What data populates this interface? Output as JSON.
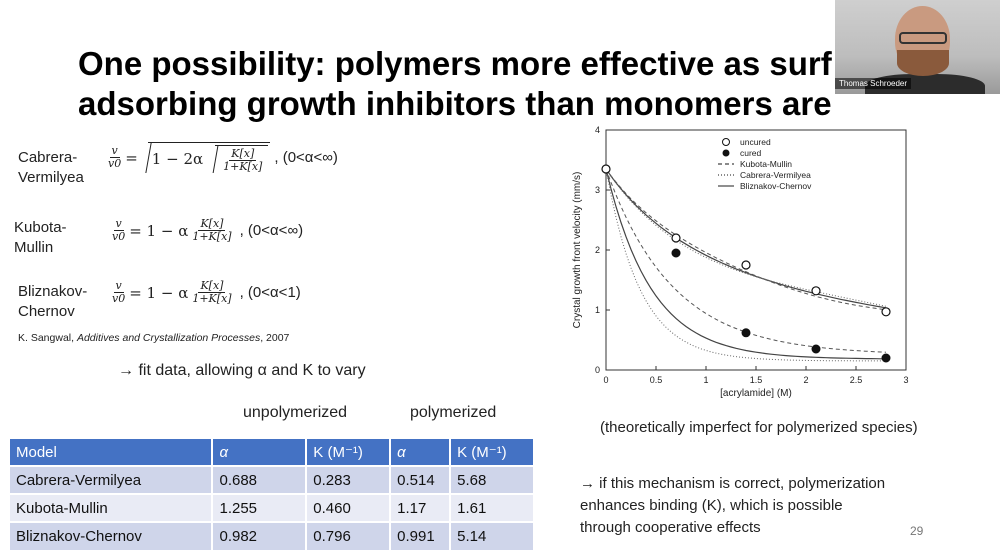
{
  "title": {
    "line1": "One possibility: polymers more effective as surf",
    "line2": "adsorbing growth inhibitors than monomers are"
  },
  "webcam": {
    "name": "Thomas Schroeder"
  },
  "equations": [
    {
      "label1": "Cabrera-",
      "label2": "Vermilyea",
      "lhs_num": "v",
      "lhs_den": "v0",
      "rhs": "1 − 2α",
      "frac_num": "K[x]",
      "frac_den": "1+K[x]",
      "cond": ", (0<α<∞)"
    },
    {
      "label1": "Kubota-",
      "label2": "Mullin",
      "lhs_num": "v",
      "lhs_den": "v0",
      "rhs": "= 1 − α",
      "frac_num": "K[x]",
      "frac_den": "1+K[x]",
      "cond": ", (0<α<∞)"
    },
    {
      "label1": "Bliznakov-",
      "label2": "Chernov",
      "lhs_num": "v",
      "lhs_den": "v0",
      "rhs": "= 1 − α",
      "frac_num": "K[x]",
      "frac_den": "1+K[x]",
      "cond": ", (0<α<1)"
    }
  ],
  "reference": {
    "author": "K. Sangwal, ",
    "title": "Additives and Crystallization Processes",
    "year": ", 2007"
  },
  "fit_note": "→ fit data, allowing α and K to vary",
  "column_groups": {
    "unpolymerized": "unpolymerized",
    "polymerized": "polymerized"
  },
  "table": {
    "headers": [
      "Model",
      "α",
      "K (M⁻¹)",
      "α",
      "K (M⁻¹)"
    ],
    "rows": [
      [
        "Cabrera-Vermilyea",
        "0.688",
        "0.283",
        "0.514",
        "5.68"
      ],
      [
        "Kubota-Mullin",
        "1.255",
        "0.460",
        "1.17",
        "1.61"
      ],
      [
        "Bliznakov-Chernov",
        "0.982",
        "0.796",
        "0.991",
        "5.14"
      ]
    ]
  },
  "chart_data": {
    "type": "scatter",
    "title": "",
    "xlabel": "[acrylamide] (M)",
    "ylabel": "Crystal growth front velocity (mm/s)",
    "xlim": [
      0,
      3
    ],
    "ylim": [
      0,
      4
    ],
    "xticks": [
      "0",
      "0.5",
      "1",
      "1.5",
      "2",
      "2.5",
      "3"
    ],
    "yticks": [
      "0",
      "1",
      "2",
      "3",
      "4"
    ],
    "legend": [
      "uncured",
      "cured",
      "Kubota-Mullin",
      "Cabrera-Vermilyea",
      "Bliznakov-Chernov"
    ],
    "series": [
      {
        "name": "uncured",
        "x": [
          0,
          0.7,
          1.4,
          2.1,
          2.8
        ],
        "y": [
          3.35,
          2.2,
          1.75,
          1.32,
          0.97
        ]
      },
      {
        "name": "cured",
        "x": [
          0.7,
          1.4,
          2.1,
          2.8
        ],
        "y": [
          1.95,
          0.62,
          0.35,
          0.2
        ]
      }
    ]
  },
  "caption": "(theoretically imperfect for polymerized species)",
  "conclusion": {
    "line1": "→ if this mechanism is correct, polymerization",
    "line2": "enhances binding (K), which is possible",
    "line3": "through cooperative effects"
  },
  "page_number": "29"
}
